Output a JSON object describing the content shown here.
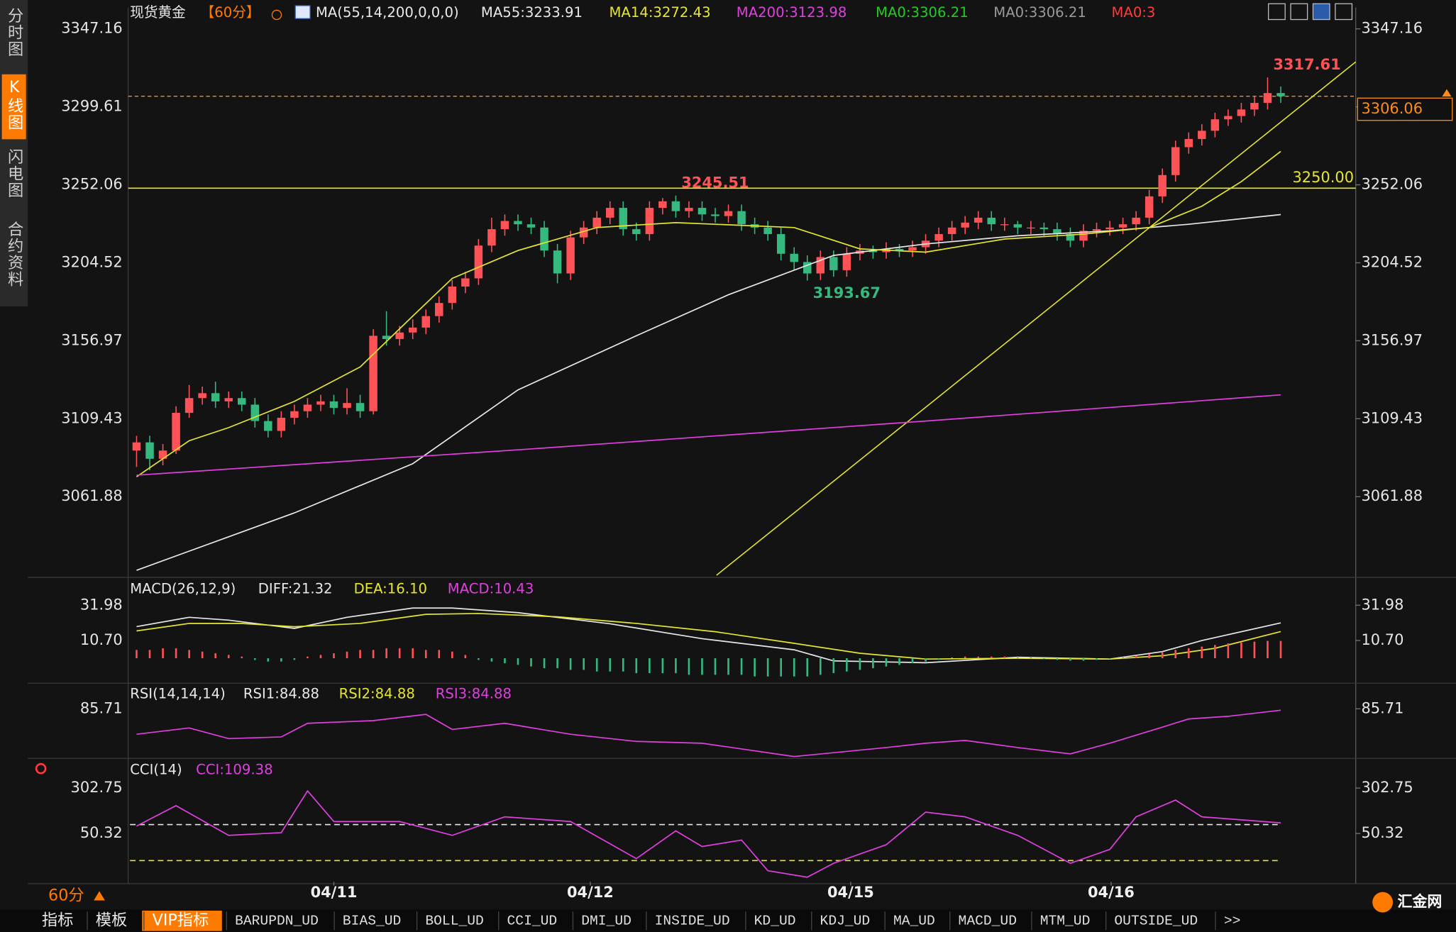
{
  "sidebar": {
    "tabs": [
      "分时图",
      "K线图",
      "闪电图",
      "合约资料"
    ],
    "active": 1
  },
  "chart_data": [
    {
      "type": "candlestick",
      "title": "现货黄金",
      "period": "【60分】",
      "indicator": "MA(55,14,200,0,0,0)",
      "xlim": [
        -0.5,
        92.7
      ],
      "xticks": [
        {
          "value": 15,
          "label": "04/11"
        },
        {
          "value": 34.5,
          "label": "04/12"
        },
        {
          "value": 54.3,
          "label": "04/15"
        },
        {
          "value": 74.1,
          "label": "04/16"
        }
      ],
      "ylim": [
        3013.8,
        3360.2
      ],
      "yticks": [
        3061.88,
        3109.43,
        3156.97,
        3204.52,
        3252.06,
        3299.61,
        3347.16
      ],
      "up_color": "#ff5257",
      "down_color": "#35b97f",
      "open": [
        3090,
        3095,
        3085,
        3090,
        3113,
        3122,
        3125,
        3120,
        3122,
        3118,
        3108,
        3102,
        3110,
        3114,
        3118,
        3120,
        3116,
        3119,
        3114,
        3160,
        3158,
        3162,
        3165,
        3172,
        3180,
        3190,
        3195,
        3215,
        3225,
        3230,
        3228,
        3226,
        3212,
        3198,
        3220,
        3226,
        3232,
        3238,
        3225,
        3222,
        3238,
        3242,
        3236,
        3238,
        3234,
        3233,
        3236,
        3228,
        3226,
        3222,
        3210,
        3205,
        3198,
        3208,
        3200,
        3210,
        3212,
        3211,
        3213,
        3212,
        3214,
        3218,
        3222,
        3226,
        3229,
        3232,
        3228,
        3228,
        3226,
        3226,
        3225,
        3222,
        3218,
        3224,
        3225,
        3226,
        3228,
        3232,
        3245,
        3258,
        3275,
        3280,
        3285,
        3292,
        3294,
        3298,
        3302,
        3308
      ],
      "high": [
        3099,
        3099,
        3094,
        3117,
        3130,
        3129,
        3132,
        3126,
        3126,
        3122,
        3112,
        3114,
        3118,
        3122,
        3124,
        3124,
        3128,
        3124,
        3164,
        3175,
        3166,
        3170,
        3176,
        3184,
        3194,
        3199,
        3219,
        3232,
        3234,
        3234,
        3232,
        3230,
        3216,
        3224,
        3230,
        3236,
        3242,
        3242,
        3229,
        3242,
        3244,
        3245.51,
        3242,
        3242,
        3238,
        3240,
        3240,
        3232,
        3230,
        3226,
        3214,
        3209,
        3212,
        3212,
        3214,
        3216,
        3215,
        3217,
        3216,
        3218,
        3222,
        3226,
        3230,
        3233,
        3236,
        3236,
        3232,
        3230,
        3230,
        3229,
        3229,
        3226,
        3228,
        3229,
        3230,
        3232,
        3236,
        3249,
        3262,
        3279,
        3284,
        3289,
        3296,
        3298,
        3302,
        3306,
        3317.61,
        3312
      ],
      "low": [
        3080,
        3078,
        3081,
        3088,
        3110,
        3118,
        3116,
        3116,
        3114,
        3104,
        3098,
        3098,
        3106,
        3110,
        3114,
        3112,
        3112,
        3110,
        3112,
        3154,
        3154,
        3158,
        3161,
        3168,
        3176,
        3186,
        3191,
        3211,
        3221,
        3224,
        3222,
        3208,
        3192,
        3194,
        3216,
        3222,
        3228,
        3221,
        3218,
        3218,
        3234,
        3232,
        3232,
        3230,
        3229,
        3229,
        3224,
        3222,
        3218,
        3206,
        3200,
        3193.67,
        3194,
        3196,
        3196,
        3206,
        3207,
        3207,
        3208,
        3208,
        3210,
        3214,
        3218,
        3222,
        3225,
        3224,
        3224,
        3222,
        3222,
        3221,
        3218,
        3214,
        3214,
        3220,
        3221,
        3222,
        3224,
        3228,
        3241,
        3254,
        3271,
        3276,
        3281,
        3288,
        3290,
        3294,
        3298,
        3302
      ],
      "close": [
        3095,
        3085,
        3090,
        3113,
        3122,
        3125,
        3120,
        3122,
        3118,
        3108,
        3102,
        3110,
        3114,
        3118,
        3120,
        3116,
        3119,
        3114,
        3160,
        3158,
        3162,
        3165,
        3172,
        3180,
        3190,
        3195,
        3215,
        3225,
        3230,
        3228,
        3226,
        3212,
        3198,
        3220,
        3226,
        3232,
        3238,
        3225,
        3222,
        3238,
        3242,
        3236,
        3238,
        3234,
        3233,
        3236,
        3228,
        3226,
        3222,
        3210,
        3205,
        3198,
        3208,
        3200,
        3210,
        3212,
        3211,
        3213,
        3212,
        3214,
        3218,
        3222,
        3226,
        3229,
        3232,
        3228,
        3228,
        3226,
        3226,
        3225,
        3222,
        3218,
        3224,
        3225,
        3226,
        3228,
        3232,
        3245,
        3258,
        3275,
        3280,
        3285,
        3292,
        3294,
        3298,
        3302,
        3308,
        3306.06
      ],
      "series": [
        {
          "name": "MA55",
          "legend": "MA55:3233.91",
          "color": "#e8e8e8",
          "x": [
            0,
            12,
            21,
            29,
            38,
            45,
            53,
            60,
            67,
            74,
            80,
            87
          ],
          "values": [
            3017,
            3052,
            3082,
            3127,
            3160,
            3185,
            3209,
            3216,
            3221,
            3224,
            3228,
            3233.91
          ]
        },
        {
          "name": "MA14",
          "legend": "MA14:3272.43",
          "color": "#e6e62e",
          "x": [
            0,
            4,
            7,
            12,
            17,
            21,
            24,
            29,
            35,
            41,
            50,
            55,
            60,
            66,
            72,
            77,
            81,
            84,
            87
          ],
          "values": [
            3074,
            3096,
            3104,
            3120,
            3141,
            3172,
            3195,
            3212,
            3226,
            3229,
            3226,
            3213,
            3211,
            3219,
            3222,
            3226,
            3239,
            3254,
            3272.43
          ]
        },
        {
          "name": "MA200",
          "legend": "MA200:3123.98",
          "color": "#e040e0",
          "x": [
            0,
            30,
            60,
            87
          ],
          "values": [
            3075,
            3091,
            3108,
            3123.98
          ]
        }
      ],
      "extra_legend": [
        {
          "text": "MA0:3306.21",
          "color": "#22cc22"
        },
        {
          "text": "MA0:3306.21",
          "color": "#9a9a9a"
        },
        {
          "text": "MA0:3",
          "color": "#ff3b3b"
        }
      ],
      "annotations": [
        {
          "x": 86,
          "value": 3317.61,
          "color": "#ff5257",
          "place": "above"
        },
        {
          "x": 41,
          "value": 3245.51,
          "color": "#ff5257",
          "place": "above"
        },
        {
          "x": 51,
          "value": 3193.67,
          "color": "#35b97f",
          "place": "below"
        }
      ],
      "hline": {
        "value": 3250,
        "label": "3250.00",
        "color": "#e6e62e"
      },
      "last_price": {
        "value": 3306.06,
        "color": "#ff8c1a"
      },
      "trendline": {
        "x": [
          44.1,
          92.7
        ],
        "values": [
          3014,
          3327
        ],
        "color": "#e6e62e"
      }
    },
    {
      "type": "macd",
      "title": "MACD(26,12,9)",
      "ylim": [
        -14.5,
        47.1
      ],
      "yticks": [
        31.98,
        {
          "value": 10.7,
          "label": "10.70"
        }
      ],
      "series": [
        {
          "name": "DIFF",
          "legend": "DIFF:21.32",
          "color": "#e8e8e8",
          "x": [
            0,
            4,
            7,
            12,
            16,
            21,
            24,
            29,
            36,
            43,
            50,
            53,
            60,
            67,
            74,
            78,
            81,
            87
          ],
          "values": [
            19.1,
            24.7,
            23,
            18,
            24.7,
            30.3,
            30.3,
            27.5,
            20.8,
            11.8,
            5.1,
            -1.6,
            -2.7,
            0.6,
            -0.5,
            4,
            10.7,
            21.32
          ]
        },
        {
          "name": "DEA",
          "legend": "DEA:16.10",
          "color": "#e6e62e",
          "x": [
            0,
            4,
            8,
            12,
            17,
            22,
            26,
            32,
            38,
            44,
            50,
            55,
            60,
            67,
            74,
            78,
            82,
            87
          ],
          "values": [
            16.5,
            21,
            21,
            19,
            21,
            26.5,
            27,
            25,
            21,
            16,
            9,
            3,
            -0.5,
            0,
            -0.5,
            1.5,
            6,
            16.1
          ]
        },
        {
          "name": "MACD",
          "legend": "MACD:10.43",
          "color": "#e040e0",
          "kind": "bar",
          "up_color": "#ff5257",
          "down_color": "#35b97f",
          "values": [
            5,
            5,
            6,
            6,
            5,
            4,
            3,
            2,
            1,
            -1,
            -2,
            -2,
            -1,
            1,
            2,
            3,
            4,
            5,
            5,
            6,
            6,
            6,
            5,
            5,
            4,
            2,
            -1,
            -2,
            -3,
            -4,
            -5,
            -6,
            -6,
            -7,
            -7,
            -8,
            -8,
            -8,
            -9,
            -9,
            -9,
            -9,
            -10,
            -10,
            -10,
            -10,
            -10,
            -11,
            -11,
            -11,
            -11,
            -11,
            -10,
            -9,
            -8,
            -7,
            -6,
            -5,
            -4,
            -3,
            -2,
            -1,
            0.5,
            1,
            1,
            1,
            1,
            0.5,
            0.5,
            -0.5,
            -1,
            -1.5,
            -1.5,
            -1,
            -0.5,
            0.5,
            1.5,
            2.5,
            3.5,
            5,
            6,
            7,
            8,
            9,
            9.5,
            10,
            10.5,
            10.43
          ]
        }
      ]
    },
    {
      "type": "rsi",
      "title": "RSI(14,14,14)",
      "ylim": [
        57,
        100
      ],
      "yticks": [
        85.71
      ],
      "series": [
        {
          "name": "RSI1",
          "legend": "RSI1:84.88",
          "color": "#e8e8e8"
        },
        {
          "name": "RSI2",
          "legend": "RSI2:84.88",
          "color": "#e6e62e"
        },
        {
          "name": "RSI3",
          "legend": "RSI3:84.88",
          "color": "#e040e0",
          "x": [
            0,
            4,
            7,
            11,
            13,
            18,
            22,
            24,
            28,
            33,
            38,
            43,
            50,
            57,
            60,
            63,
            67,
            71,
            74,
            78,
            80,
            83,
            87
          ],
          "values": [
            70.4,
            74.2,
            67.8,
            68.8,
            77,
            78.6,
            82.4,
            73.3,
            77,
            70.4,
            66.1,
            65,
            57,
            62.4,
            65,
            66.7,
            62.4,
            58.6,
            65,
            74.7,
            79.6,
            81.2,
            84.88
          ]
        }
      ]
    },
    {
      "type": "cci",
      "title": "CCI(14)",
      "ylim": [
        -218,
        452
      ],
      "yticks": [
        302.75,
        50.32
      ],
      "levels": [
        {
          "value": 100,
          "color": "#e8e8e8"
        },
        {
          "value": -100,
          "color": "#e6e62e"
        }
      ],
      "series": [
        {
          "name": "CCI",
          "legend": "CCI:109.38",
          "color": "#e040e0",
          "x": [
            0,
            3,
            7,
            11,
            13,
            15,
            20,
            24,
            28,
            33,
            38,
            41,
            43,
            46,
            48,
            51,
            53,
            57,
            60,
            63,
            67,
            71,
            74,
            76,
            79,
            81,
            87
          ],
          "values": [
            92,
            205,
            40,
            55,
            287,
            117,
            117,
            40,
            143,
            117,
            -89,
            65,
            -22,
            14,
            -156,
            -192,
            -115,
            -12,
            169,
            143,
            40,
            -115,
            -38,
            143,
            236,
            143,
            109.38
          ]
        }
      ]
    }
  ],
  "footer": {
    "period": "60分",
    "tabs": [
      "指标",
      "模板",
      "VIP指标",
      "BARUPDN_UD",
      "BIAS_UD",
      "BOLL_UD",
      "CCI_UD",
      "DMI_UD",
      "INSIDE_UD",
      "KD_UD",
      "KDJ_UD",
      "MA_UD",
      "MACD_UD",
      "MTM_UD",
      "OUTSIDE_UD",
      ">>"
    ],
    "active_tab": 2,
    "brand": "汇金网"
  }
}
